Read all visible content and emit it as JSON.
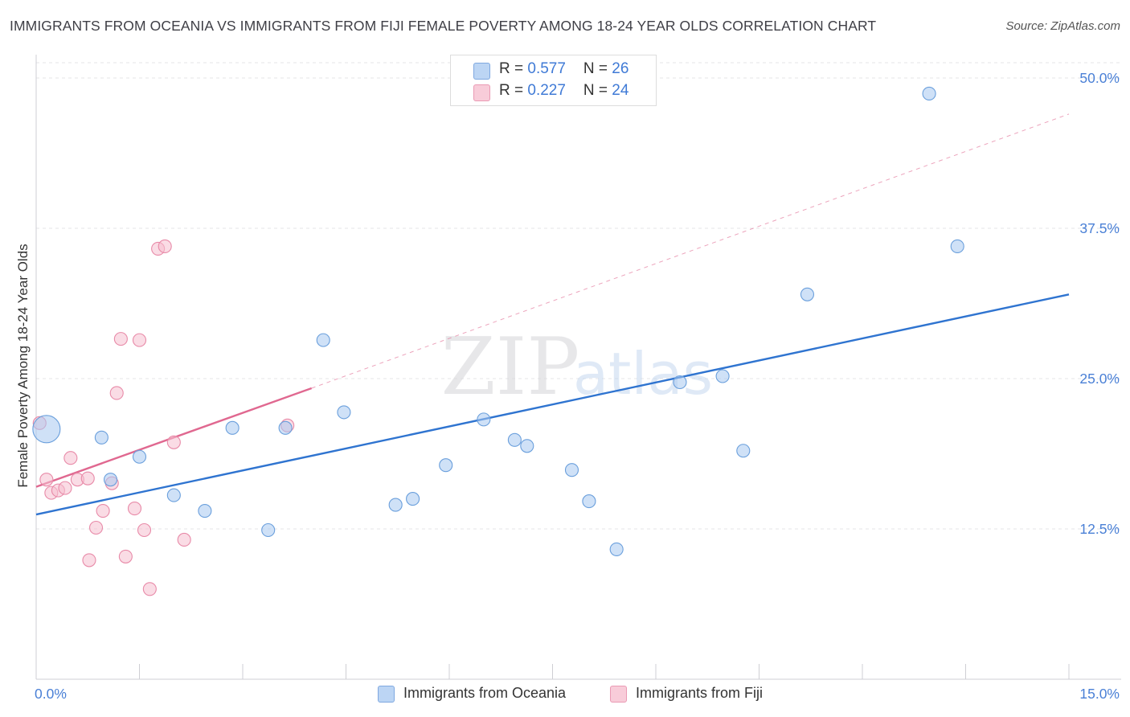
{
  "title": "IMMIGRANTS FROM OCEANIA VS IMMIGRANTS FROM FIJI FEMALE POVERTY AMONG 18-24 YEAR OLDS CORRELATION CHART",
  "source": "Source: ZipAtlas.com",
  "watermark": {
    "zip": "ZIP",
    "atlas": "atlas"
  },
  "legend": {
    "rows": [
      {
        "r_label": "R = ",
        "r_value": "0.577",
        "n_label": "N = ",
        "n_value": "26"
      },
      {
        "r_label": "R = ",
        "r_value": "0.227",
        "n_label": "N = ",
        "n_value": "24"
      }
    ]
  },
  "chart_data": {
    "type": "scatter",
    "title": "IMMIGRANTS FROM OCEANIA VS IMMIGRANTS FROM FIJI FEMALE POVERTY AMONG 18-24 YEAR OLDS CORRELATION CHART",
    "xlabel": "",
    "ylabel": "Female Poverty Among 18-24 Year Olds",
    "xlim": [
      0,
      15
    ],
    "ylim": [
      0,
      50
    ],
    "x_tick_labels": [
      "0.0%",
      "15.0%"
    ],
    "y_ticks": [
      12.5,
      25.0,
      37.5,
      50.0
    ],
    "y_tick_labels": [
      "12.5%",
      "25.0%",
      "37.5%",
      "50.0%"
    ],
    "grid": true,
    "legend_position": "top-center",
    "series": [
      {
        "name": "Immigrants from Oceania",
        "color": "#a8c8f0",
        "stroke": "#6a9fdc",
        "trend_color": "#2f74d0",
        "trend": {
          "x": [
            0,
            15
          ],
          "y": [
            13.7,
            32.0
          ]
        },
        "trend_dashed": false,
        "points": [
          {
            "x": 0.15,
            "y": 20.8,
            "big": true
          },
          {
            "x": 0.95,
            "y": 20.1
          },
          {
            "x": 1.08,
            "y": 16.6
          },
          {
            "x": 1.5,
            "y": 18.5
          },
          {
            "x": 2.0,
            "y": 15.3
          },
          {
            "x": 2.45,
            "y": 14.0
          },
          {
            "x": 2.85,
            "y": 20.9
          },
          {
            "x": 3.37,
            "y": 12.4
          },
          {
            "x": 3.62,
            "y": 20.9
          },
          {
            "x": 4.17,
            "y": 28.2
          },
          {
            "x": 4.47,
            "y": 22.2
          },
          {
            "x": 5.22,
            "y": 14.5
          },
          {
            "x": 5.47,
            "y": 15.0
          },
          {
            "x": 5.95,
            "y": 17.8
          },
          {
            "x": 6.5,
            "y": 21.6
          },
          {
            "x": 6.95,
            "y": 19.9
          },
          {
            "x": 7.13,
            "y": 19.4
          },
          {
            "x": 7.78,
            "y": 17.4
          },
          {
            "x": 8.03,
            "y": 14.8
          },
          {
            "x": 8.43,
            "y": 10.8
          },
          {
            "x": 9.35,
            "y": 24.7
          },
          {
            "x": 9.97,
            "y": 25.2
          },
          {
            "x": 10.27,
            "y": 19.0
          },
          {
            "x": 11.2,
            "y": 32.0
          },
          {
            "x": 12.97,
            "y": 48.7
          },
          {
            "x": 13.38,
            "y": 36.0
          }
        ]
      },
      {
        "name": "Immigrants from Fiji",
        "color": "#f6bfd0",
        "stroke": "#e88aa8",
        "trend_color": "#e06890",
        "trend": {
          "x": [
            0,
            4.0
          ],
          "y": [
            16.0,
            24.2
          ]
        },
        "trend_extension": {
          "x": [
            4.0,
            15
          ],
          "y": [
            24.2,
            47.0
          ]
        },
        "points": [
          {
            "x": 0.05,
            "y": 21.3
          },
          {
            "x": 0.15,
            "y": 16.6
          },
          {
            "x": 0.22,
            "y": 15.5
          },
          {
            "x": 0.32,
            "y": 15.7
          },
          {
            "x": 0.42,
            "y": 15.9
          },
          {
            "x": 0.5,
            "y": 18.4
          },
          {
            "x": 0.6,
            "y": 16.6
          },
          {
            "x": 0.75,
            "y": 16.7
          },
          {
            "x": 0.77,
            "y": 9.9
          },
          {
            "x": 0.87,
            "y": 12.6
          },
          {
            "x": 0.97,
            "y": 14.0
          },
          {
            "x": 1.1,
            "y": 16.3
          },
          {
            "x": 1.17,
            "y": 23.8
          },
          {
            "x": 1.23,
            "y": 28.3
          },
          {
            "x": 1.3,
            "y": 10.2
          },
          {
            "x": 1.43,
            "y": 14.2
          },
          {
            "x": 1.5,
            "y": 28.2
          },
          {
            "x": 1.57,
            "y": 12.4
          },
          {
            "x": 1.65,
            "y": 7.5
          },
          {
            "x": 1.77,
            "y": 35.8
          },
          {
            "x": 1.87,
            "y": 36.0
          },
          {
            "x": 2.0,
            "y": 19.7
          },
          {
            "x": 2.15,
            "y": 11.6
          },
          {
            "x": 3.65,
            "y": 21.1
          }
        ]
      }
    ]
  },
  "bottom_legend": [
    {
      "label": "Immigrants from Oceania"
    },
    {
      "label": "Immigrants from Fiji"
    }
  ]
}
